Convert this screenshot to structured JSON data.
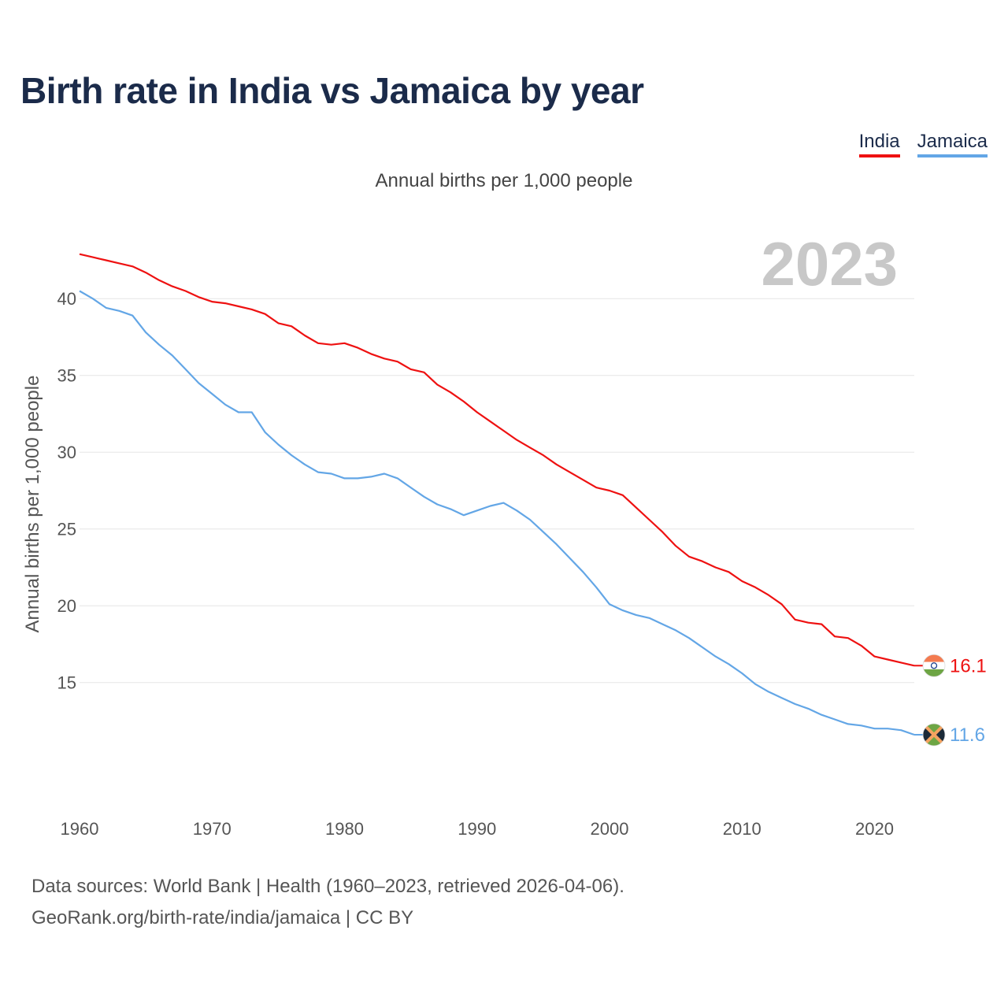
{
  "chart_data": {
    "type": "line",
    "title": "Birth rate in India vs Jamaica by year",
    "subtitle": "Annual births per 1,000 people",
    "ylabel": "Annual births per 1,000 people",
    "xlabel": "",
    "highlight_year": "2023",
    "xlim": [
      1960,
      2023
    ],
    "ylim": [
      9.6,
      43.5
    ],
    "yticks": [
      15,
      20,
      25,
      30,
      35,
      40
    ],
    "xticks": [
      1960,
      1970,
      1980,
      1990,
      2000,
      2010,
      2020
    ],
    "x": [
      1960,
      1961,
      1962,
      1963,
      1964,
      1965,
      1966,
      1967,
      1968,
      1969,
      1970,
      1971,
      1972,
      1973,
      1974,
      1975,
      1976,
      1977,
      1978,
      1979,
      1980,
      1981,
      1982,
      1983,
      1984,
      1985,
      1986,
      1987,
      1988,
      1989,
      1990,
      1991,
      1992,
      1993,
      1994,
      1995,
      1996,
      1997,
      1998,
      1999,
      2000,
      2001,
      2002,
      2003,
      2004,
      2005,
      2006,
      2007,
      2008,
      2009,
      2010,
      2011,
      2012,
      2013,
      2014,
      2015,
      2016,
      2017,
      2018,
      2019,
      2020,
      2021,
      2022,
      2023
    ],
    "series": [
      {
        "name": "India",
        "color": "#ee1111",
        "end_label": "16.1",
        "flag": "india-flag-icon",
        "values": [
          42.9,
          42.7,
          42.5,
          42.3,
          42.1,
          41.7,
          41.2,
          40.8,
          40.5,
          40.1,
          39.8,
          39.7,
          39.5,
          39.3,
          39.0,
          38.4,
          38.2,
          37.6,
          37.1,
          37.0,
          37.1,
          36.8,
          36.4,
          36.1,
          35.9,
          35.4,
          35.2,
          34.4,
          33.9,
          33.3,
          32.6,
          32.0,
          31.4,
          30.8,
          30.3,
          29.8,
          29.2,
          28.7,
          28.2,
          27.7,
          27.5,
          27.2,
          26.4,
          25.6,
          24.8,
          23.9,
          23.2,
          22.9,
          22.5,
          22.2,
          21.6,
          21.2,
          20.7,
          20.1,
          19.1,
          18.9,
          18.8,
          18.0,
          17.9,
          17.4,
          16.7,
          16.5,
          16.3,
          16.1
        ]
      },
      {
        "name": "Jamaica",
        "color": "#63a6e6",
        "end_label": "11.6",
        "flag": "jamaica-flag-icon",
        "values": [
          40.5,
          40.0,
          39.4,
          39.2,
          38.9,
          37.8,
          37.0,
          36.3,
          35.4,
          34.5,
          33.8,
          33.1,
          32.6,
          32.6,
          31.3,
          30.5,
          29.8,
          29.2,
          28.7,
          28.6,
          28.3,
          28.3,
          28.4,
          28.6,
          28.3,
          27.7,
          27.1,
          26.6,
          26.3,
          25.9,
          26.2,
          26.5,
          26.7,
          26.2,
          25.6,
          24.8,
          24.0,
          23.1,
          22.2,
          21.2,
          20.1,
          19.7,
          19.4,
          19.2,
          18.8,
          18.4,
          17.9,
          17.3,
          16.7,
          16.2,
          15.6,
          14.9,
          14.4,
          14.0,
          13.6,
          13.3,
          12.9,
          12.6,
          12.3,
          12.2,
          12.0,
          12.0,
          11.9,
          11.6
        ]
      }
    ]
  },
  "footer": {
    "line1": "Data sources: World Bank | Health (1960–2023, retrieved 2026-04-06).",
    "line2": "GeoRank.org/birth-rate/india/jamaica | CC BY"
  }
}
